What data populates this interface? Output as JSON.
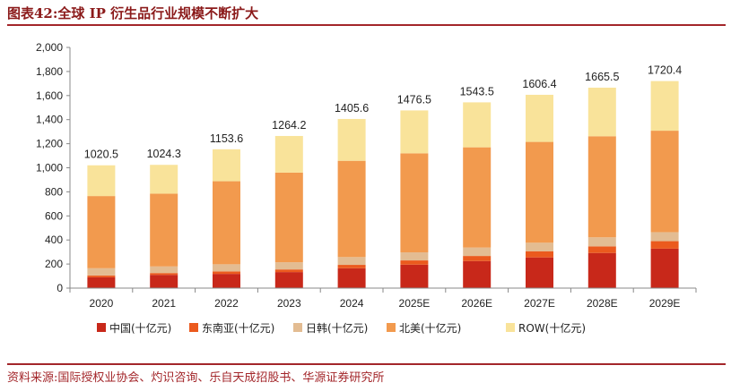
{
  "header": {
    "title": "图表42:全球 IP 衍生品行业规模不断扩大"
  },
  "footer": {
    "source": "资料来源:国际授权业协会、灼识咨询、乐自天成招股书、华源证券研究所"
  },
  "chart_data": {
    "type": "bar",
    "stacked": true,
    "title": "",
    "xlabel": "",
    "ylabel": "",
    "ylim": [
      0,
      2000
    ],
    "yticks": [
      0,
      200,
      400,
      600,
      800,
      1000,
      1200,
      1400,
      1600,
      1800,
      2000
    ],
    "ytick_labels": [
      "0",
      "200",
      "400",
      "600",
      "800",
      "1,000",
      "1,200",
      "1,400",
      "1,600",
      "1,800",
      "2,000"
    ],
    "grid": false,
    "legend_position": "bottom",
    "categories": [
      "2020",
      "2021",
      "2022",
      "2023",
      "2024",
      "2025E",
      "2026E",
      "2027E",
      "2028E",
      "2029E"
    ],
    "series": [
      {
        "name": "中国(十亿元)",
        "color": "#C8281A",
        "values": [
          90,
          110,
          118,
          133,
          165,
          195,
          225,
          255,
          292,
          328
        ]
      },
      {
        "name": "东南亚(十亿元)",
        "color": "#EB5A1E",
        "values": [
          15,
          15,
          20,
          22,
          28,
          35,
          42,
          50,
          55,
          62
        ]
      },
      {
        "name": "日韩(十亿元)",
        "color": "#E3BC92",
        "values": [
          60,
          55,
          60,
          60,
          65,
          67,
          70,
          72,
          75,
          75
        ]
      },
      {
        "name": "北美(十亿元)",
        "color": "#F29A4E",
        "values": [
          600,
          605,
          690,
          745,
          800,
          823,
          833,
          838,
          840,
          843
        ]
      },
      {
        "name": "ROW(十亿元)",
        "color": "#F9E39A",
        "values": [
          255.5,
          239.3,
          265.6,
          304.2,
          347.6,
          356.5,
          373.5,
          391.4,
          403.5,
          412.4
        ]
      }
    ],
    "totals": [
      1020.5,
      1024.3,
      1153.6,
      1264.2,
      1405.6,
      1476.5,
      1543.5,
      1606.4,
      1665.5,
      1720.4
    ],
    "total_labels": [
      "1020.5",
      "1024.3",
      "1153.6",
      "1264.2",
      "1405.6",
      "1476.5",
      "1543.5",
      "1606.4",
      "1665.5",
      "1720.4"
    ]
  }
}
